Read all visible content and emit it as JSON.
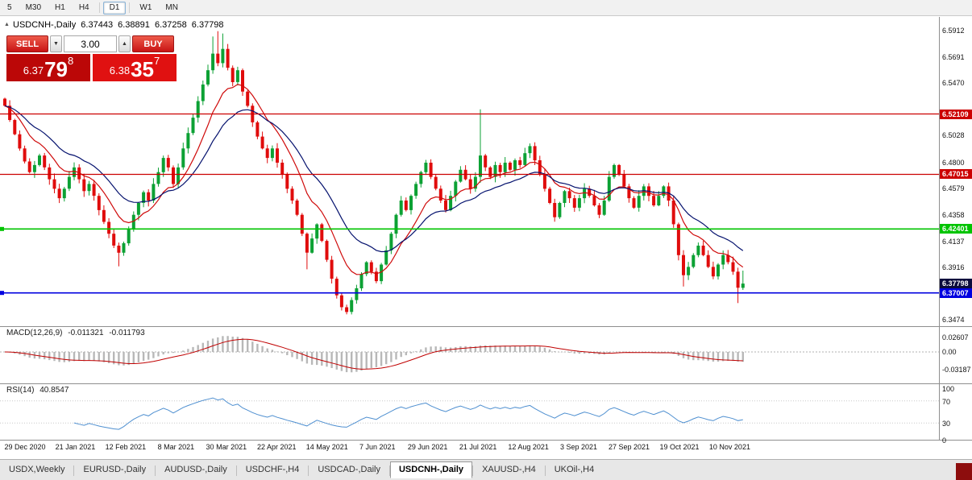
{
  "colors": {
    "bull": "#0ca134",
    "bear": "#e00c0c",
    "ma_fast": "#cf0a0a",
    "ma_slow": "#05126e",
    "macd_hist": "#b8b8b8",
    "macd_signal": "#c00000",
    "rsi_line": "#4e8fd0",
    "level_red": "#cc0000",
    "level_green": "#00c400",
    "level_blue": "#0000e0",
    "tag_current": "#0b0b3c",
    "btn_red_top": "#ee5a4a",
    "btn_red_bottom": "#c81414",
    "bid_box": "#bb0707",
    "ask_box": "#e01111"
  },
  "toolbar": {
    "periods": [
      "5",
      "M30",
      "H1",
      "H4",
      "D1",
      "W1",
      "MN"
    ],
    "active": "D1"
  },
  "header": {
    "symbol": "USDCNH-,Daily",
    "open": "6.37443",
    "high": "6.38891",
    "low": "6.37258",
    "close": "6.37798",
    "marker_glyph": "▲"
  },
  "one_click": {
    "sell_label": "SELL",
    "buy_label": "BUY",
    "volume": "3.00",
    "down_glyph": "▼",
    "up_glyph": "▲",
    "bid_small": "6.37",
    "bid_big": "79",
    "bid_sup": "8",
    "ask_small": "6.38",
    "ask_big": "35",
    "ask_sup": "7"
  },
  "price_axis": [
    "6.5912",
    "6.5691",
    "6.5470",
    "6.5028",
    "6.4800",
    "6.4579",
    "6.4358",
    "6.4137",
    "6.3916",
    "6.3474"
  ],
  "macd": {
    "title": "MACD(12,26,9)",
    "value1": "-0.011321",
    "value2": "-0.011793",
    "axis": [
      "0.02607",
      "0.00",
      "-0.03187"
    ]
  },
  "rsi": {
    "title": "RSI(14)",
    "value": "40.8547",
    "axis": [
      "100",
      "70",
      "30",
      "0"
    ]
  },
  "dates": [
    "29 Dec 2020",
    "21 Jan 2021",
    "12 Feb 2021",
    "8 Mar 2021",
    "30 Mar 2021",
    "22 Apr 2021",
    "14 May 2021",
    "7 Jun 2021",
    "29 Jun 2021",
    "21 Jul 2021",
    "12 Aug 2021",
    "3 Sep 2021",
    "27 Sep 2021",
    "19 Oct 2021",
    "10 Nov 2021"
  ],
  "tabs": {
    "items": [
      "USDX,Weekly",
      "EURUSD-,Daily",
      "AUDUSD-,Daily",
      "USDCHF-,H4",
      "USDCAD-,Daily",
      "USDCNH-,Daily",
      "XAUUSD-,H4",
      "UKOil-,H4"
    ],
    "active": "USDCNH-,Daily"
  },
  "chart_data": {
    "type": "candlestick",
    "symbol": "USDCNH-",
    "timeframe": "Daily",
    "title": "USDCNH-,Daily 6.37443 6.38891 6.37258 6.37798",
    "last_bar": {
      "open": 6.37443,
      "high": 6.38891,
      "low": 6.37258,
      "close": 6.37798
    },
    "current_price": {
      "value": 6.37798,
      "label": "6.37798"
    },
    "levels": [
      {
        "value": 6.52109,
        "label": "6.52109",
        "color": "level_red",
        "marker": false
      },
      {
        "value": 6.47015,
        "label": "6.47015",
        "color": "level_red",
        "marker": false
      },
      {
        "value": 6.42401,
        "label": "6.42401",
        "color": "level_green",
        "marker": true
      },
      {
        "value": 6.37007,
        "label": "6.37007",
        "color": "level_blue",
        "marker": true
      }
    ],
    "y_axis": {
      "min": 6.342,
      "max": 6.603
    },
    "macd_display": {
      "main": -0.011321,
      "signal": -0.011793,
      "axis_values": [
        0.02607,
        0.0,
        -0.03187
      ]
    },
    "rsi_display": {
      "value": 40.8547,
      "axis_values": [
        100,
        70,
        30,
        0
      ]
    },
    "first_open": 6.534,
    "closes": [
      6.528,
      6.516,
      6.504,
      6.492,
      6.481,
      6.472,
      6.478,
      6.486,
      6.476,
      6.466,
      6.458,
      6.45,
      6.458,
      6.468,
      6.476,
      6.466,
      6.456,
      6.462,
      6.452,
      6.44,
      6.43,
      6.42,
      6.41,
      6.404,
      6.412,
      6.424,
      6.436,
      6.446,
      6.455,
      6.448,
      6.462,
      6.472,
      6.484,
      6.476,
      6.462,
      6.476,
      6.492,
      6.505,
      6.518,
      6.532,
      6.546,
      6.558,
      6.572,
      6.564,
      6.576,
      6.56,
      6.548,
      6.558,
      6.54,
      6.528,
      6.514,
      6.502,
      6.492,
      6.484,
      6.492,
      6.48,
      6.47,
      6.458,
      6.448,
      6.436,
      6.42,
      6.404,
      6.416,
      6.428,
      6.414,
      6.398,
      6.382,
      6.368,
      6.358,
      6.354,
      6.364,
      6.374,
      6.386,
      6.396,
      6.388,
      6.38,
      6.394,
      6.406,
      6.42,
      6.436,
      6.448,
      6.44,
      6.452,
      6.462,
      6.472,
      6.48,
      6.468,
      6.458,
      6.448,
      6.44,
      6.452,
      6.464,
      6.474,
      6.466,
      6.458,
      6.468,
      6.486,
      6.476,
      6.468,
      6.478,
      6.472,
      6.48,
      6.474,
      6.482,
      6.478,
      6.488,
      6.494,
      6.482,
      6.47,
      6.458,
      6.446,
      6.434,
      6.446,
      6.456,
      6.45,
      6.442,
      6.45,
      6.458,
      6.452,
      6.444,
      6.436,
      6.448,
      6.468,
      6.478,
      6.47,
      6.46,
      6.45,
      6.442,
      6.452,
      6.46,
      6.452,
      6.444,
      6.452,
      6.46,
      6.448,
      6.428,
      6.402,
      6.385,
      6.392,
      6.402,
      6.41,
      6.402,
      6.392,
      6.384,
      6.394,
      6.402,
      6.396,
      6.388,
      6.3744,
      6.37798
    ],
    "wick_overrides": [
      {
        "i": 23,
        "low": 6.3925
      },
      {
        "i": 42,
        "high": 6.5865
      },
      {
        "i": 43,
        "high": 6.591
      },
      {
        "i": 44,
        "high": 6.589
      },
      {
        "i": 61,
        "low": 6.39
      },
      {
        "i": 69,
        "low": 6.352
      },
      {
        "i": 96,
        "high": 6.525
      },
      {
        "i": 137,
        "low": 6.3755
      },
      {
        "i": 148,
        "low": 6.3615
      },
      {
        "i": 149,
        "high": 6.38891,
        "low": 6.37258
      }
    ]
  }
}
